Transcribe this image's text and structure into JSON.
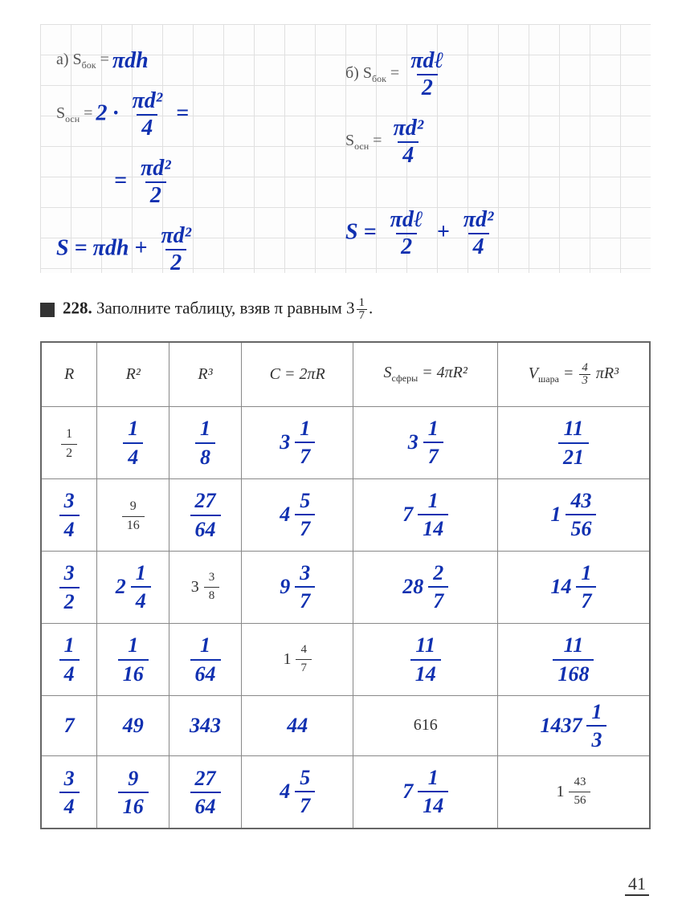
{
  "workarea": {
    "a": {
      "label": "а)",
      "s_bok_label": "S",
      "s_bok_sub": "бок",
      "s_bok_rhs": "πdh",
      "s_osn_label": "S",
      "s_osn_sub": "осн",
      "s_osn_line1_pre": "2 ·",
      "s_osn_line1_num": "πd²",
      "s_osn_line1_den": "4",
      "s_osn_line2_num": "πd²",
      "s_osn_line2_den": "2",
      "total_lhs": "S =",
      "total_t1": "πdh +",
      "total_frac_num": "πd²",
      "total_frac_den": "2"
    },
    "b": {
      "label": "б)",
      "s_bok_label": "S",
      "s_bok_sub": "бок",
      "s_bok_num": "πdℓ",
      "s_bok_den": "2",
      "s_osn_label": "S",
      "s_osn_sub": "осн",
      "s_osn_num": "πd²",
      "s_osn_den": "4",
      "total_lhs": "S =",
      "total_f1_num": "πdℓ",
      "total_f1_den": "2",
      "total_plus": "+",
      "total_f2_num": "πd²",
      "total_f2_den": "4"
    }
  },
  "problem": {
    "number": "228.",
    "text_before": "Заполните таблицу, взяв π равным",
    "pi_whole": "3",
    "pi_num": "1",
    "pi_den": "7",
    "period": "."
  },
  "table": {
    "headers": {
      "R": "R",
      "R2": "R²",
      "R3": "R³",
      "C": "C = 2πR",
      "S_label": "S",
      "S_sub": "сферы",
      "S_rhs": " = 4πR²",
      "V_label": "V",
      "V_sub": "шара",
      "V_rhs_pre": " = ",
      "V_frac_num": "4",
      "V_frac_den": "3",
      "V_rhs_post": " πR³"
    },
    "rows": [
      {
        "R": {
          "style": "print",
          "type": "frac",
          "num": "1",
          "den": "2"
        },
        "R2": {
          "style": "hand",
          "type": "frac",
          "num": "1",
          "den": "4"
        },
        "R3": {
          "style": "hand",
          "type": "frac",
          "num": "1",
          "den": "8"
        },
        "C": {
          "style": "hand",
          "type": "mixed",
          "whole": "3",
          "num": "1",
          "den": "7"
        },
        "S": {
          "style": "hand",
          "type": "mixed",
          "whole": "3",
          "num": "1",
          "den": "7"
        },
        "V": {
          "style": "hand",
          "type": "frac",
          "num": "11",
          "den": "21"
        }
      },
      {
        "R": {
          "style": "hand",
          "type": "frac",
          "num": "3",
          "den": "4"
        },
        "R2": {
          "style": "print",
          "type": "frac",
          "num": "9",
          "den": "16"
        },
        "R3": {
          "style": "hand",
          "type": "frac",
          "num": "27",
          "den": "64"
        },
        "C": {
          "style": "hand",
          "type": "mixed",
          "whole": "4",
          "num": "5",
          "den": "7"
        },
        "S": {
          "style": "hand",
          "type": "mixed",
          "whole": "7",
          "num": "1",
          "den": "14"
        },
        "V": {
          "style": "hand",
          "type": "mixed",
          "whole": "1",
          "num": "43",
          "den": "56"
        }
      },
      {
        "R": {
          "style": "hand",
          "type": "frac",
          "num": "3",
          "den": "2"
        },
        "R2": {
          "style": "hand",
          "type": "mixed",
          "whole": "2",
          "num": "1",
          "den": "4"
        },
        "R3": {
          "style": "print",
          "type": "mixed",
          "whole": "3",
          "num": "3",
          "den": "8"
        },
        "C": {
          "style": "hand",
          "type": "mixed",
          "whole": "9",
          "num": "3",
          "den": "7"
        },
        "S": {
          "style": "hand",
          "type": "mixed",
          "whole": "28",
          "num": "2",
          "den": "7"
        },
        "V": {
          "style": "hand",
          "type": "mixed",
          "whole": "14",
          "num": "1",
          "den": "7"
        }
      },
      {
        "R": {
          "style": "hand",
          "type": "frac",
          "num": "1",
          "den": "4"
        },
        "R2": {
          "style": "hand",
          "type": "frac",
          "num": "1",
          "den": "16"
        },
        "R3": {
          "style": "hand",
          "type": "frac",
          "num": "1",
          "den": "64"
        },
        "C": {
          "style": "print",
          "type": "mixed",
          "whole": "1",
          "num": "4",
          "den": "7"
        },
        "S": {
          "style": "hand",
          "type": "frac",
          "num": "11",
          "den": "14"
        },
        "V": {
          "style": "hand",
          "type": "frac",
          "num": "11",
          "den": "168"
        }
      },
      {
        "R": {
          "style": "hand",
          "type": "int",
          "val": "7"
        },
        "R2": {
          "style": "hand",
          "type": "int",
          "val": "49"
        },
        "R3": {
          "style": "hand",
          "type": "int",
          "val": "343"
        },
        "C": {
          "style": "hand",
          "type": "int",
          "val": "44"
        },
        "S": {
          "style": "print",
          "type": "int",
          "val": "616"
        },
        "V": {
          "style": "hand",
          "type": "mixed",
          "whole": "1437",
          "num": "1",
          "den": "3"
        },
        "short": true
      },
      {
        "R": {
          "style": "hand",
          "type": "frac",
          "num": "3",
          "den": "4"
        },
        "R2": {
          "style": "hand",
          "type": "frac",
          "num": "9",
          "den": "16"
        },
        "R3": {
          "style": "hand",
          "type": "frac",
          "num": "27",
          "den": "64"
        },
        "C": {
          "style": "hand",
          "type": "mixed",
          "whole": "4",
          "num": "5",
          "den": "7"
        },
        "S": {
          "style": "hand",
          "type": "mixed",
          "whole": "7",
          "num": "1",
          "den": "14"
        },
        "V": {
          "style": "print",
          "type": "mixed",
          "whole": "1",
          "num": "43",
          "den": "56"
        }
      }
    ]
  },
  "page_number": "41",
  "colors": {
    "ink": "#1030b0",
    "print": "#333333",
    "grid": "#e0e0e0",
    "border": "#777777"
  }
}
